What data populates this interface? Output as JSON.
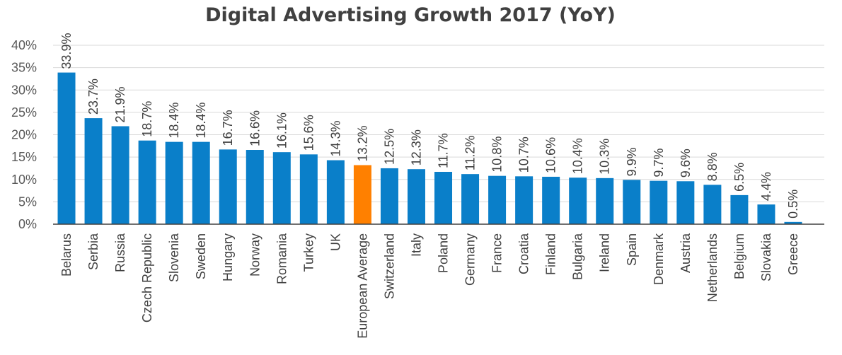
{
  "chart_data": {
    "type": "bar",
    "title": "Digital Advertising Growth 2017 (YoY)",
    "xlabel": "",
    "ylabel": "",
    "ylim": [
      0,
      40
    ],
    "yticks": [
      0,
      5,
      10,
      15,
      20,
      25,
      30,
      35,
      40
    ],
    "ytick_suffix": "%",
    "grid": true,
    "legend": "none",
    "categories": [
      "Belarus",
      "Serbia",
      "Russia",
      "Czech Republic",
      "Slovenia",
      "Sweden",
      "Hungary",
      "Norway",
      "Romania",
      "Turkey",
      "UK",
      "European Average",
      "Switzerland",
      "Italy",
      "Poland",
      "Germany",
      "France",
      "Croatia",
      "Finland",
      "Bulgaria",
      "Ireland",
      "Spain",
      "Denmark",
      "Austria",
      "Netherlands",
      "Belgium",
      "Slovakia",
      "Greece"
    ],
    "values": [
      33.9,
      23.7,
      21.9,
      18.7,
      18.4,
      18.4,
      16.7,
      16.6,
      16.1,
      15.6,
      14.3,
      13.2,
      12.5,
      12.3,
      11.7,
      11.2,
      10.8,
      10.7,
      10.6,
      10.4,
      10.3,
      9.9,
      9.7,
      9.6,
      8.8,
      6.5,
      4.4,
      0.5
    ],
    "data_labels": [
      "33.9%",
      "23.7%",
      "21.9%",
      "18.7%",
      "18.4%",
      "18.4%",
      "16.7%",
      "16.6%",
      "16.1%",
      "15.6%",
      "14.3%",
      "13.2%",
      "12.5%",
      "12.3%",
      "11.7%",
      "11.2%",
      "10.8%",
      "10.7%",
      "10.6%",
      "10.4%",
      "10.3%",
      "9.9%",
      "9.7%",
      "9.6%",
      "8.8%",
      "6.5%",
      "4.4%",
      "0.5%"
    ],
    "highlight_category": "European Average",
    "colors": {
      "bar": "#0a7fc9",
      "highlight": "#ff8000",
      "grid": "#d9d9d9",
      "axis": "#404040"
    }
  }
}
